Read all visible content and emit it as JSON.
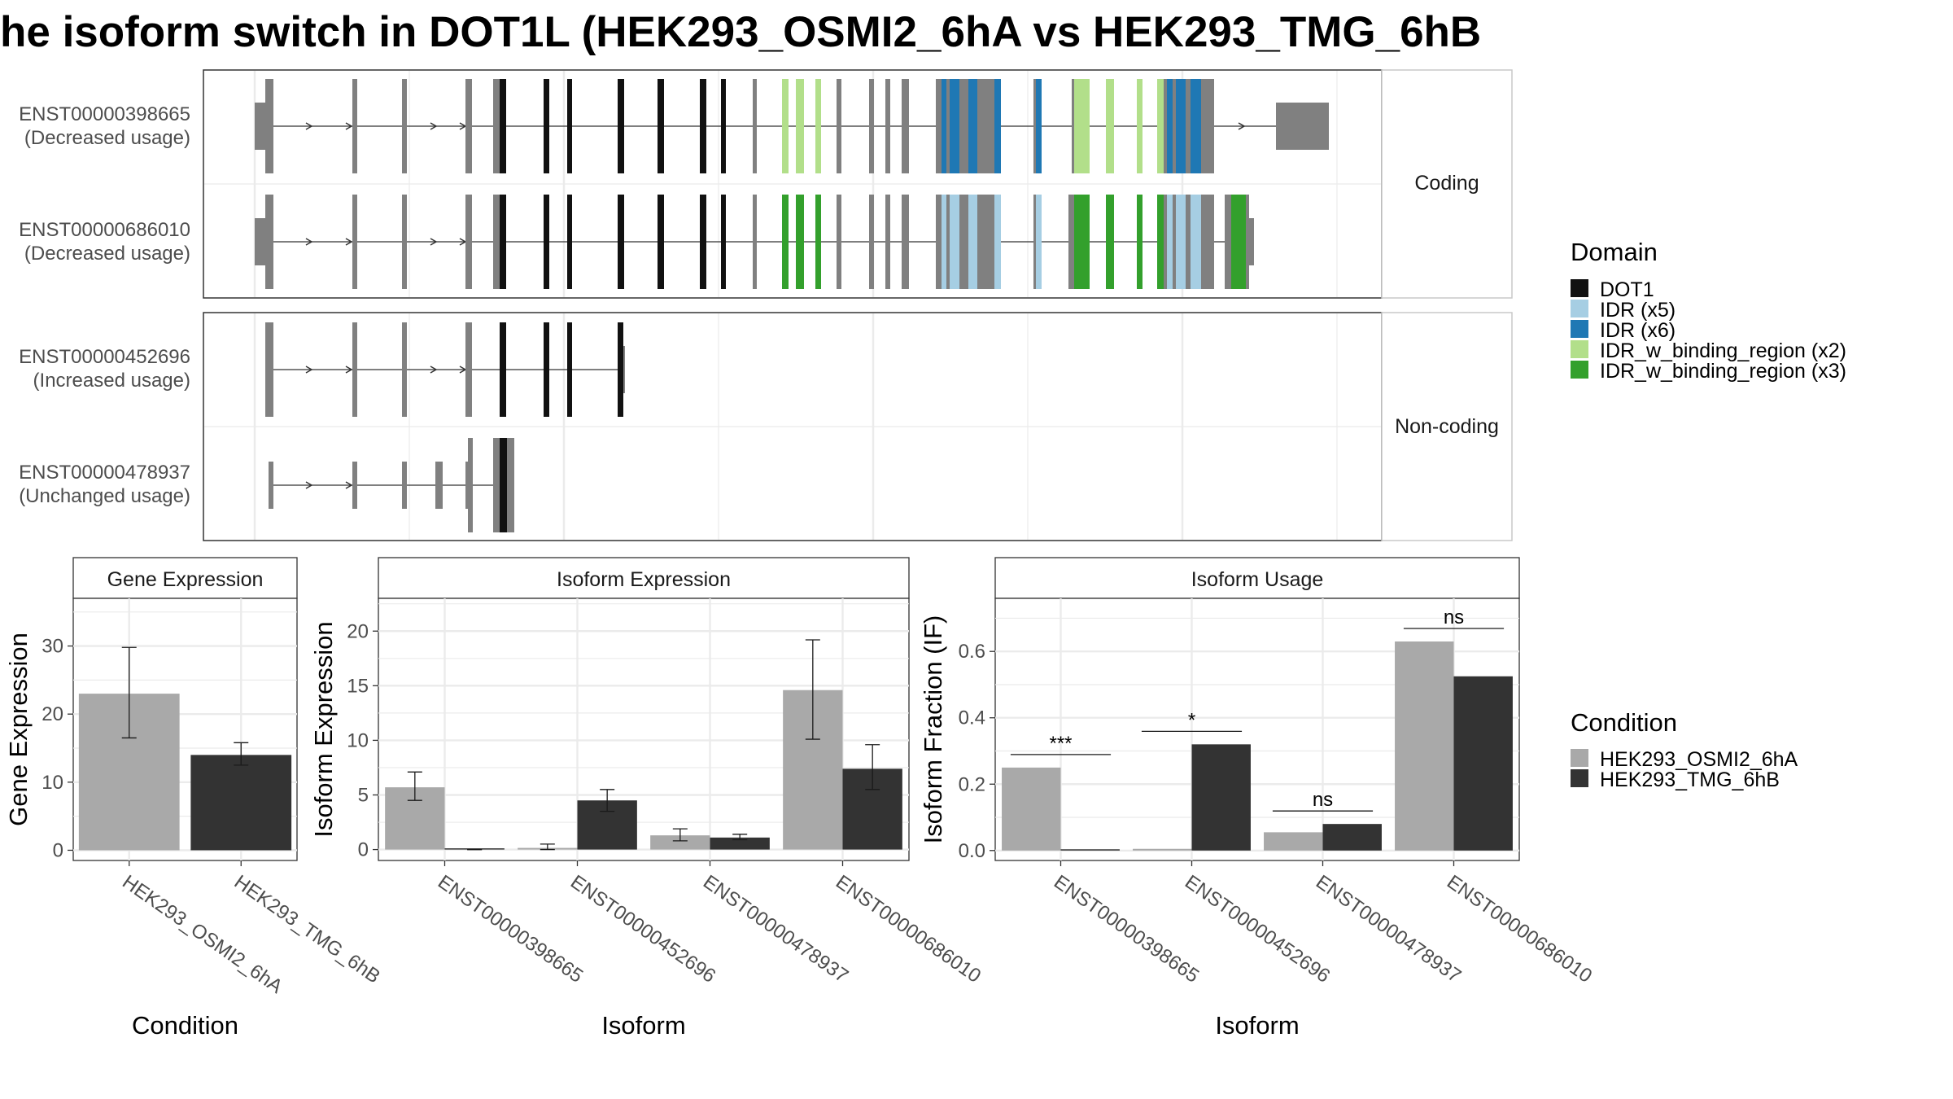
{
  "title": "he isoform switch in DOT1L (HEK293_OSMI2_6hA vs HEK293_TMG_6hB",
  "colors": {
    "condA": "#a9a9a9",
    "condB": "#333333",
    "exon": "#808080",
    "DOT1": "#111111",
    "IDR_x5": "#a6cee3",
    "IDR_x6": "#1f78b4",
    "IDRb_x2": "#b2df8a",
    "IDRb_x3": "#33a02c",
    "grid": "#ebebeb"
  },
  "facets": {
    "coding": "Coding",
    "noncoding": "Non-coding"
  },
  "transcripts": [
    {
      "id": "ENST00000398665",
      "usage": "(Decreased usage)"
    },
    {
      "id": "ENST00000686010",
      "usage": "(Decreased usage)"
    },
    {
      "id": "ENST00000452696",
      "usage": "(Increased usage)"
    },
    {
      "id": "ENST00000478937",
      "usage": "(Unchanged usage)"
    }
  ],
  "legend_domain": {
    "title": "Domain",
    "items": [
      {
        "label": "DOT1",
        "color": "#111111"
      },
      {
        "label": "IDR (x5)",
        "color": "#a6cee3"
      },
      {
        "label": "IDR (x6)",
        "color": "#1f78b4"
      },
      {
        "label": "IDR_w_binding_region (x2)",
        "color": "#b2df8a"
      },
      {
        "label": "IDR_w_binding_region (x3)",
        "color": "#33a02c"
      }
    ]
  },
  "legend_condition": {
    "title": "Condition",
    "items": [
      {
        "label": "HEK293_OSMI2_6hA",
        "color": "#a9a9a9"
      },
      {
        "label": "HEK293_TMG_6hB",
        "color": "#333333"
      }
    ]
  },
  "chart_data": [
    {
      "type": "bar",
      "title": "Gene Expression",
      "xlabel": "Condition",
      "ylabel": "Gene Expression",
      "ylim": [
        -1.5,
        37
      ],
      "yticks": [
        0,
        10,
        20,
        30
      ],
      "categories": [
        "HEK293_OSMI2_6hA",
        "HEK293_TMG_6hB"
      ],
      "values": [
        23.0,
        14.0
      ],
      "errors": [
        [
          16.5,
          29.8
        ],
        [
          12.5,
          15.8
        ]
      ]
    },
    {
      "type": "bar",
      "title": "Isoform Expression",
      "xlabel": "Isoform",
      "ylabel": "Isoform Expression",
      "ylim": [
        -1,
        23
      ],
      "yticks": [
        0,
        5,
        10,
        15,
        20
      ],
      "categories": [
        "ENST00000398665",
        "ENST00000452696",
        "ENST00000478937",
        "ENST00000686010"
      ],
      "series": [
        {
          "name": "HEK293_OSMI2_6hA",
          "values": [
            5.7,
            0.15,
            1.3,
            14.6
          ],
          "errors": [
            [
              4.5,
              7.1
            ],
            [
              0.0,
              0.5
            ],
            [
              0.8,
              1.9
            ],
            [
              10.1,
              19.2
            ]
          ]
        },
        {
          "name": "HEK293_TMG_6hB",
          "values": [
            0.0,
            4.5,
            1.1,
            7.4
          ],
          "errors": [
            [
              0.0,
              0.0
            ],
            [
              3.5,
              5.5
            ],
            [
              0.9,
              1.4
            ],
            [
              5.5,
              9.6
            ]
          ]
        }
      ]
    },
    {
      "type": "bar",
      "title": "Isoform Usage",
      "xlabel": "Isoform",
      "ylabel": "Isoform Fraction (IF)",
      "ylim": [
        -0.03,
        0.76
      ],
      "yticks": [
        0.0,
        0.2,
        0.4,
        0.6
      ],
      "ytick_labels": [
        "0.0",
        "0.2",
        "0.4",
        "0.6"
      ],
      "categories": [
        "ENST00000398665",
        "ENST00000452696",
        "ENST00000478937",
        "ENST00000686010"
      ],
      "series": [
        {
          "name": "HEK293_OSMI2_6hA",
          "values": [
            0.25,
            0.005,
            0.055,
            0.63
          ]
        },
        {
          "name": "HEK293_TMG_6hB",
          "values": [
            0.0,
            0.32,
            0.08,
            0.525
          ]
        }
      ],
      "significance": [
        "***",
        "*",
        "ns",
        "ns"
      ]
    }
  ]
}
